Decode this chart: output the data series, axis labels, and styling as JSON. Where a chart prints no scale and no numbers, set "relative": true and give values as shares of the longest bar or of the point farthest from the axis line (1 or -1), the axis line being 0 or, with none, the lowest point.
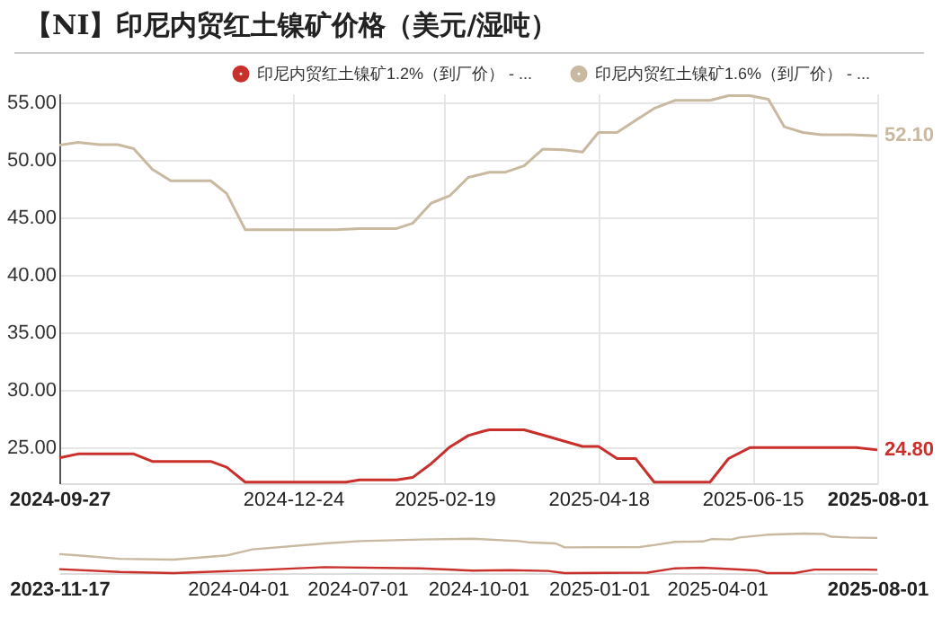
{
  "chart_data": [
    {
      "type": "line",
      "title": "【NI】印尼内贸红土镍矿价格（美元/湿吨）",
      "legend": "top",
      "grid": true,
      "marker": "none",
      "xlim": [
        "2024-09-27",
        "2025-08-01"
      ],
      "xticks": [
        "2024-09-27",
        "2024-12-24",
        "2025-02-19",
        "2025-04-18",
        "2025-06-15",
        "2025-08-01"
      ],
      "ylim": [
        21.9,
        55.8
      ],
      "yticks": [
        {
          "value": 25,
          "label": "25.00"
        },
        {
          "value": 30,
          "label": "30.00"
        },
        {
          "value": 35,
          "label": "35.00"
        },
        {
          "value": 40,
          "label": "40.00"
        },
        {
          "value": 45,
          "label": "45.00"
        },
        {
          "value": 50,
          "label": "50.00"
        },
        {
          "value": 55,
          "label": "55.00"
        }
      ],
      "series": [
        {
          "name": "印尼内贸红土镍矿1.2%（到厂价） - ...",
          "color": "#c9302c",
          "x": [
            "2024-09-27",
            "2024-10-04",
            "2024-10-25",
            "2024-11-01",
            "2024-11-23",
            "2024-11-29",
            "2024-12-06",
            "2025-01-13",
            "2025-01-18",
            "2025-02-01",
            "2025-02-07",
            "2025-02-14",
            "2025-02-21",
            "2025-02-28",
            "2025-03-06",
            "2025-03-08",
            "2025-03-21",
            "2025-03-28",
            "2025-04-12",
            "2025-04-18",
            "2025-04-25",
            "2025-05-02",
            "2025-05-09",
            "2025-05-30",
            "2025-06-06",
            "2025-06-14",
            "2025-07-24",
            "2025-08-01"
          ],
          "values": [
            24.1,
            24.45,
            24.45,
            23.8,
            23.8,
            23.3,
            22.0,
            22.0,
            22.2,
            22.2,
            22.4,
            23.6,
            25.05,
            26.05,
            26.45,
            26.55,
            26.55,
            26.1,
            25.1,
            25.1,
            24.05,
            24.05,
            22.0,
            22.0,
            24.05,
            25.0,
            25.0,
            24.8
          ],
          "value_labels": [
            null,
            null,
            null,
            null,
            null,
            null,
            null,
            null,
            null,
            null,
            null,
            null,
            null,
            null,
            null,
            null,
            null,
            null,
            null,
            null,
            null,
            null,
            null,
            null,
            null,
            null,
            null,
            "24.80"
          ]
        },
        {
          "name": "印尼内贸红土镍矿1.6%（到厂价） - ...",
          "color": "#c8b9a0",
          "x": [
            "2024-09-27",
            "2024-10-04",
            "2024-10-12",
            "2024-10-19",
            "2024-10-25",
            "2024-11-01",
            "2024-11-08",
            "2024-11-23",
            "2024-11-29",
            "2024-12-06",
            "2025-01-09",
            "2025-01-18",
            "2025-02-01",
            "2025-02-07",
            "2025-02-14",
            "2025-02-21",
            "2025-02-28",
            "2025-03-08",
            "2025-03-14",
            "2025-03-21",
            "2025-03-28",
            "2025-04-05",
            "2025-04-12",
            "2025-04-18",
            "2025-04-25",
            "2025-05-02",
            "2025-05-09",
            "2025-05-17",
            "2025-05-30",
            "2025-06-06",
            "2025-06-14",
            "2025-06-21",
            "2025-06-27",
            "2025-07-04",
            "2025-07-11",
            "2025-07-22",
            "2025-08-01"
          ],
          "values": [
            51.3,
            51.55,
            51.35,
            51.35,
            51.0,
            49.2,
            48.2,
            48.2,
            47.1,
            43.95,
            43.95,
            44.05,
            44.05,
            44.5,
            46.25,
            46.9,
            48.5,
            48.95,
            48.95,
            49.5,
            50.95,
            50.9,
            50.7,
            52.4,
            52.4,
            53.45,
            54.5,
            55.2,
            55.2,
            55.6,
            55.6,
            55.3,
            52.9,
            52.4,
            52.2,
            52.2,
            52.1
          ],
          "value_labels": [
            null,
            null,
            null,
            null,
            null,
            null,
            null,
            null,
            null,
            null,
            null,
            null,
            null,
            null,
            null,
            null,
            null,
            null,
            null,
            null,
            null,
            null,
            null,
            null,
            null,
            null,
            null,
            null,
            null,
            null,
            null,
            null,
            null,
            null,
            null,
            null,
            "52.10"
          ]
        }
      ]
    },
    {
      "type": "line",
      "relative": true,
      "tick_labels": "x",
      "xlim": [
        "2023-11-17",
        "2025-08-01"
      ],
      "xticks": [
        "2023-11-17",
        "2024-04-01",
        "2024-07-01",
        "2024-10-01",
        "2025-01-01",
        "2025-04-01",
        "2025-08-01"
      ],
      "series": [
        {
          "color": "#c9302c",
          "x": [
            "2023-11-17",
            "2024-01-02",
            "2024-02-12",
            "2024-04-12",
            "2024-06-06",
            "2024-08-18",
            "2024-09-27",
            "2024-10-25",
            "2024-11-23",
            "2024-12-06",
            "2025-02-07",
            "2025-02-28",
            "2025-03-21",
            "2025-04-18",
            "2025-05-02",
            "2025-05-09",
            "2025-05-30",
            "2025-06-14",
            "2025-07-24",
            "2025-08-01"
          ],
          "values": [
            0.1,
            0.03,
            0,
            0.07,
            0.15,
            0.12,
            0.063,
            0.073,
            0.054,
            0,
            0.012,
            0.121,
            0.135,
            0.092,
            0.061,
            0,
            0,
            0.089,
            0.089,
            0.083
          ]
        },
        {
          "color": "#c8b9a0",
          "x": [
            "2023-11-17",
            "2023-12-01",
            "2024-01-02",
            "2024-02-12",
            "2024-03-24",
            "2024-04-12",
            "2024-06-06",
            "2024-07-03",
            "2024-08-18",
            "2024-09-27",
            "2024-11-01",
            "2024-11-08",
            "2024-11-29",
            "2024-12-06",
            "2025-02-01",
            "2025-02-14",
            "2025-02-28",
            "2025-03-21",
            "2025-03-28",
            "2025-04-12",
            "2025-04-18",
            "2025-05-09",
            "2025-06-06",
            "2025-06-21",
            "2025-06-27",
            "2025-07-11",
            "2025-08-01"
          ],
          "values": [
            0.48,
            0.45,
            0.36,
            0.34,
            0.45,
            0.6,
            0.75,
            0.81,
            0.85,
            0.87,
            0.81,
            0.78,
            0.75,
            0.65,
            0.66,
            0.72,
            0.79,
            0.8,
            0.86,
            0.85,
            0.9,
            0.97,
            1.0,
            0.99,
            0.92,
            0.9,
            0.89
          ]
        }
      ]
    }
  ]
}
